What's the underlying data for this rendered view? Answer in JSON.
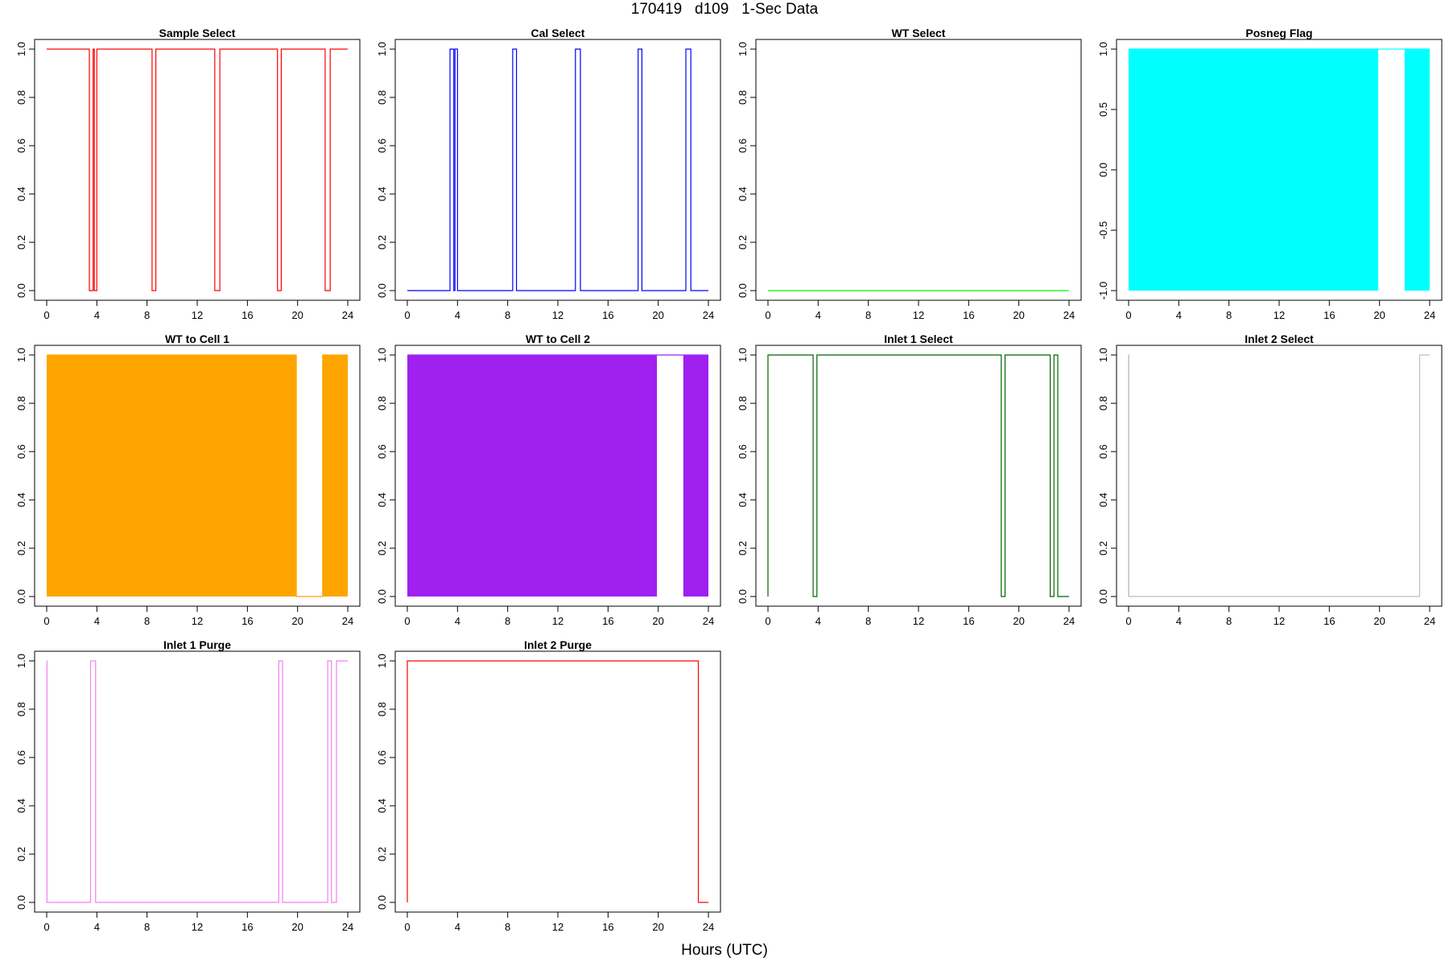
{
  "page": {
    "title": "170419   d109   1-Sec Data",
    "xlabel": "Hours (UTC)"
  },
  "chart_data": [
    {
      "type": "line",
      "title": "Sample Select",
      "color": "#ff0000",
      "xlim": [
        0,
        24
      ],
      "ylim": [
        0,
        1
      ],
      "xticks": [
        0,
        4,
        8,
        12,
        16,
        20,
        24
      ],
      "yticks": [
        0.0,
        0.2,
        0.4,
        0.6,
        0.8,
        1.0
      ],
      "ytick_labels": [
        "0.0",
        "0.2",
        "0.4",
        "0.6",
        "0.8",
        "1.0"
      ],
      "x": [
        0,
        3.4,
        3.4,
        3.7,
        3.7,
        3.8,
        3.8,
        4.0,
        4.0,
        8.4,
        8.4,
        8.7,
        8.7,
        13.4,
        13.4,
        13.8,
        13.8,
        18.4,
        18.4,
        18.7,
        18.7,
        22.2,
        22.2,
        22.6,
        22.6,
        24
      ],
      "y": [
        1,
        1,
        0,
        0,
        1,
        1,
        0,
        0,
        1,
        1,
        0,
        0,
        1,
        1,
        0,
        0,
        1,
        1,
        0,
        0,
        1,
        1,
        0,
        0,
        1,
        1
      ]
    },
    {
      "type": "line",
      "title": "Cal Select",
      "color": "#0000ff",
      "xlim": [
        0,
        24
      ],
      "ylim": [
        0,
        1
      ],
      "xticks": [
        0,
        4,
        8,
        12,
        16,
        20,
        24
      ],
      "yticks": [
        0.0,
        0.2,
        0.4,
        0.6,
        0.8,
        1.0
      ],
      "ytick_labels": [
        "0.0",
        "0.2",
        "0.4",
        "0.6",
        "0.8",
        "1.0"
      ],
      "x": [
        0,
        3.4,
        3.4,
        3.7,
        3.7,
        3.8,
        3.8,
        4.0,
        4.0,
        8.4,
        8.4,
        8.7,
        8.7,
        13.4,
        13.4,
        13.8,
        13.8,
        18.4,
        18.4,
        18.7,
        18.7,
        22.2,
        22.2,
        22.6,
        22.6,
        24
      ],
      "y": [
        0,
        0,
        1,
        1,
        0,
        0,
        1,
        1,
        0,
        0,
        1,
        1,
        0,
        0,
        1,
        1,
        0,
        0,
        1,
        1,
        0,
        0,
        1,
        1,
        0,
        0
      ]
    },
    {
      "type": "line",
      "title": "WT Select",
      "color": "#00ff00",
      "xlim": [
        0,
        24
      ],
      "ylim": [
        0,
        1
      ],
      "xticks": [
        0,
        4,
        8,
        12,
        16,
        20,
        24
      ],
      "yticks": [
        0.0,
        0.2,
        0.4,
        0.6,
        0.8,
        1.0
      ],
      "ytick_labels": [
        "0.0",
        "0.2",
        "0.4",
        "0.6",
        "0.8",
        "1.0"
      ],
      "x": [
        0,
        24
      ],
      "y": [
        0,
        0
      ]
    },
    {
      "type": "area",
      "title": "Posneg Flag",
      "color": "#00ffff",
      "xlim": [
        0,
        24
      ],
      "ylim": [
        -1,
        1
      ],
      "xticks": [
        0,
        4,
        8,
        12,
        16,
        20,
        24
      ],
      "yticks": [
        -1.0,
        -0.5,
        0.0,
        0.5,
        1.0
      ],
      "ytick_labels": [
        "-1.0",
        "-0.5",
        "0.0",
        "0.5",
        "1.0"
      ],
      "filled_ranges": [
        [
          0,
          19.9
        ],
        [
          22.0,
          24
        ]
      ],
      "x": [
        0,
        19.9,
        19.9,
        22.0,
        22.0,
        24
      ],
      "y": [
        1,
        1,
        1,
        1,
        1,
        1
      ]
    },
    {
      "type": "area",
      "title": "WT to Cell 1",
      "color": "#ffa500",
      "xlim": [
        0,
        24
      ],
      "ylim": [
        0,
        1
      ],
      "xticks": [
        0,
        4,
        8,
        12,
        16,
        20,
        24
      ],
      "yticks": [
        0.0,
        0.2,
        0.4,
        0.6,
        0.8,
        1.0
      ],
      "ytick_labels": [
        "0.0",
        "0.2",
        "0.4",
        "0.6",
        "0.8",
        "1.0"
      ],
      "filled_ranges": [
        [
          0,
          19.9
        ],
        [
          22.0,
          24
        ]
      ],
      "x": [
        0,
        19.9,
        19.9,
        22.0,
        22.0,
        24
      ],
      "y": [
        1,
        1,
        0,
        0,
        1,
        1
      ]
    },
    {
      "type": "area",
      "title": "WT to Cell 2",
      "color": "#a020f0",
      "xlim": [
        0,
        24
      ],
      "ylim": [
        0,
        1
      ],
      "xticks": [
        0,
        4,
        8,
        12,
        16,
        20,
        24
      ],
      "yticks": [
        0.0,
        0.2,
        0.4,
        0.6,
        0.8,
        1.0
      ],
      "ytick_labels": [
        "0.0",
        "0.2",
        "0.4",
        "0.6",
        "0.8",
        "1.0"
      ],
      "filled_ranges": [
        [
          0,
          19.9
        ],
        [
          22.0,
          24
        ]
      ],
      "x": [
        0,
        19.9,
        19.9,
        22.0,
        22.0,
        24
      ],
      "y": [
        1,
        1,
        1,
        1,
        1,
        1
      ]
    },
    {
      "type": "line",
      "title": "Inlet 1 Select",
      "color": "#006400",
      "xlim": [
        0,
        24
      ],
      "ylim": [
        0,
        1
      ],
      "xticks": [
        0,
        4,
        8,
        12,
        16,
        20,
        24
      ],
      "yticks": [
        0.0,
        0.2,
        0.4,
        0.6,
        0.8,
        1.0
      ],
      "ytick_labels": [
        "0.0",
        "0.2",
        "0.4",
        "0.6",
        "0.8",
        "1.0"
      ],
      "x": [
        0,
        0,
        3.6,
        3.6,
        3.9,
        3.9,
        18.6,
        18.6,
        18.9,
        18.9,
        22.5,
        22.5,
        22.8,
        22.8,
        23.1,
        23.1,
        24
      ],
      "y": [
        0,
        1,
        1,
        0,
        0,
        1,
        1,
        0,
        0,
        1,
        1,
        0,
        0,
        1,
        1,
        0,
        0
      ]
    },
    {
      "type": "line",
      "title": "Inlet 2 Select",
      "color": "#bebebe",
      "xlim": [
        0,
        24
      ],
      "ylim": [
        0,
        1
      ],
      "xticks": [
        0,
        4,
        8,
        12,
        16,
        20,
        24
      ],
      "yticks": [
        0.0,
        0.2,
        0.4,
        0.6,
        0.8,
        1.0
      ],
      "ytick_labels": [
        "0.0",
        "0.2",
        "0.4",
        "0.6",
        "0.8",
        "1.0"
      ],
      "x": [
        0,
        0,
        0.02,
        0.02,
        23.2,
        23.2,
        24
      ],
      "y": [
        0,
        1,
        1,
        0,
        0,
        1,
        1
      ]
    },
    {
      "type": "line",
      "title": "Inlet 1 Purge",
      "color": "#ee82ee",
      "xlim": [
        0,
        24
      ],
      "ylim": [
        0,
        1
      ],
      "xticks": [
        0,
        4,
        8,
        12,
        16,
        20,
        24
      ],
      "yticks": [
        0.0,
        0.2,
        0.4,
        0.6,
        0.8,
        1.0
      ],
      "ytick_labels": [
        "0.0",
        "0.2",
        "0.4",
        "0.6",
        "0.8",
        "1.0"
      ],
      "x": [
        0,
        0,
        0.02,
        0.02,
        3.5,
        3.5,
        3.9,
        3.9,
        18.5,
        18.5,
        18.8,
        18.8,
        22.4,
        22.4,
        22.7,
        22.7,
        23.1,
        23.1,
        24
      ],
      "y": [
        1,
        1,
        1,
        0,
        0,
        1,
        1,
        0,
        0,
        1,
        1,
        0,
        0,
        1,
        1,
        0,
        0,
        1,
        1
      ]
    },
    {
      "type": "line",
      "title": "Inlet 2 Purge",
      "color": "#ff0000",
      "xlim": [
        0,
        24
      ],
      "ylim": [
        0,
        1
      ],
      "xticks": [
        0,
        4,
        8,
        12,
        16,
        20,
        24
      ],
      "yticks": [
        0.0,
        0.2,
        0.4,
        0.6,
        0.8,
        1.0
      ],
      "ytick_labels": [
        "0.0",
        "0.2",
        "0.4",
        "0.6",
        "0.8",
        "1.0"
      ],
      "x": [
        0,
        0,
        23.2,
        23.2,
        24
      ],
      "y": [
        0,
        1,
        1,
        0,
        0
      ]
    }
  ]
}
